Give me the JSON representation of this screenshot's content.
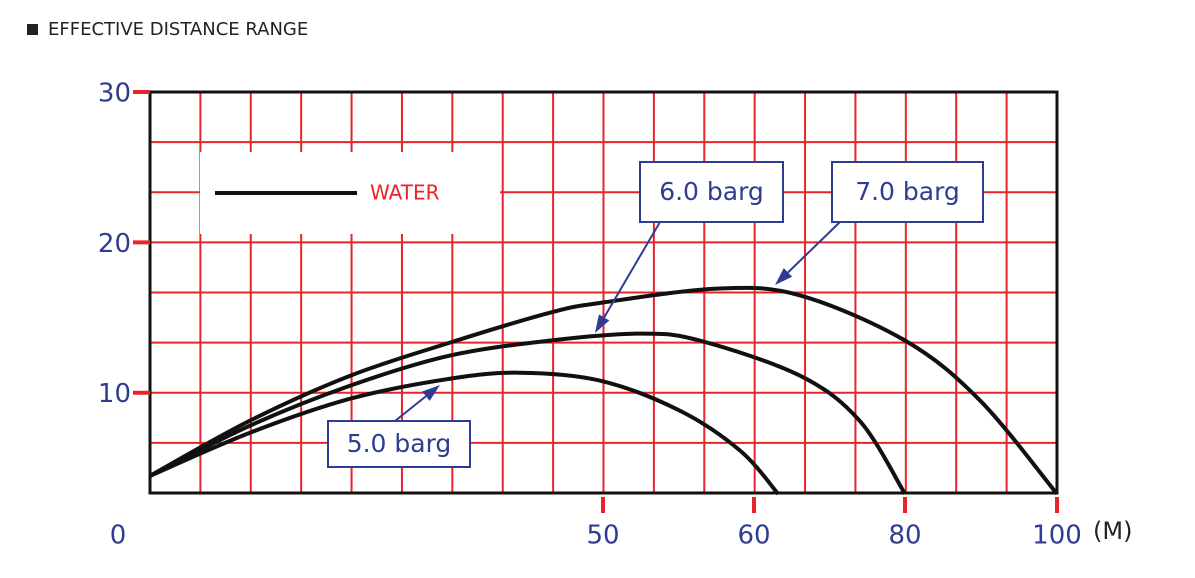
{
  "chart_data": {
    "type": "line",
    "title": "EFFECTIVE DISTANCE RANGE",
    "legend_label": "WATER",
    "x_unit": "(M)",
    "xlim": [
      0,
      100
    ],
    "xticks": [
      0,
      50,
      60,
      80,
      100
    ],
    "ylim": [
      3.33,
      30
    ],
    "yticks": [
      10,
      20,
      30
    ],
    "series": [
      {
        "name": "5.0 barg",
        "color": "#111111",
        "x": [
          0,
          11.0,
          22.1,
          33.1,
          40.8,
          49.7,
          55.1,
          59.1,
          63.2
        ],
        "values": [
          4.47,
          7.33,
          9.6,
          10.93,
          11.33,
          10.8,
          8.8,
          6.13,
          3.27
        ]
      },
      {
        "name": "6.0 barg",
        "color": "#111111",
        "x": [
          0,
          11.0,
          22.1,
          33.1,
          44.2,
          52.5,
          56.4,
          66.1,
          74.0,
          80
        ],
        "values": [
          4.47,
          7.8,
          10.47,
          12.47,
          13.47,
          13.93,
          13.47,
          11.13,
          8.13,
          3.27
        ]
      },
      {
        "name": "7.0 barg",
        "color": "#111111",
        "x": [
          0,
          11.0,
          22.1,
          33.1,
          44.2,
          50,
          57.7,
          66.1,
          80,
          89.9,
          100
        ],
        "values": [
          4.47,
          8.13,
          11.13,
          13.33,
          15.33,
          16.0,
          16.93,
          16.47,
          13.47,
          9.47,
          3.27
        ]
      }
    ]
  }
}
